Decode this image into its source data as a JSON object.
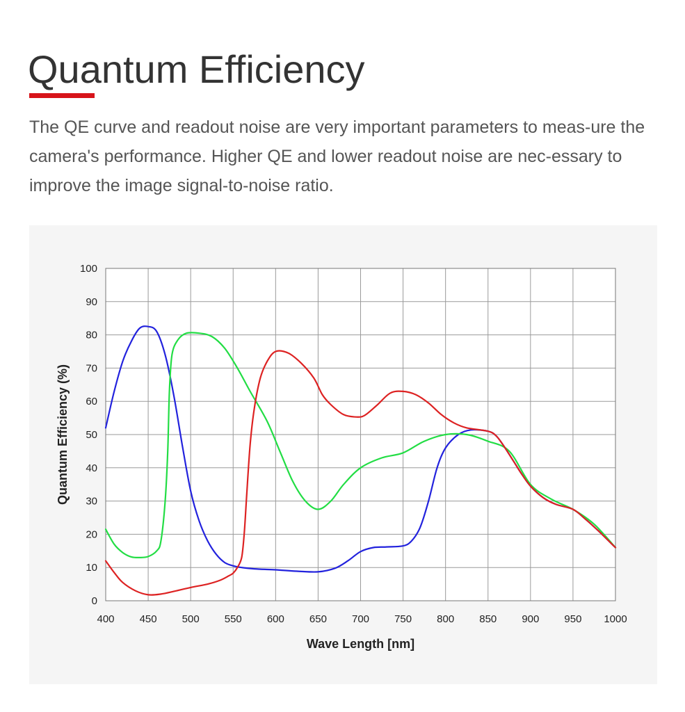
{
  "header": {
    "title": "Quantum Efficiency",
    "accent_color": "#d7141a",
    "description": "The QE curve and readout noise are very important parameters to meas-ure the camera's performance. Higher QE and lower readout noise are nec-essary to improve the image signal-to-noise ratio."
  },
  "chart_data": {
    "type": "line",
    "title": "",
    "xlabel": "Wave Length [nm]",
    "ylabel": "Quantum Efficiency (%)",
    "xlim": [
      400,
      1000
    ],
    "ylim": [
      0,
      100
    ],
    "x_ticks": [
      400,
      450,
      500,
      550,
      600,
      650,
      700,
      750,
      800,
      850,
      900,
      950,
      1000
    ],
    "y_ticks": [
      0,
      10,
      20,
      30,
      40,
      50,
      60,
      70,
      80,
      90,
      100
    ],
    "grid": true,
    "legend": "none",
    "series": [
      {
        "color": "#2222dd",
        "points": [
          [
            400,
            52
          ],
          [
            410,
            63
          ],
          [
            420,
            72
          ],
          [
            430,
            78
          ],
          [
            440,
            82
          ],
          [
            450,
            82.5
          ],
          [
            460,
            81
          ],
          [
            470,
            74
          ],
          [
            480,
            62
          ],
          [
            490,
            47
          ],
          [
            500,
            33
          ],
          [
            510,
            24
          ],
          [
            520,
            18
          ],
          [
            530,
            14
          ],
          [
            540,
            11.5
          ],
          [
            550,
            10.5
          ],
          [
            560,
            10
          ],
          [
            575,
            9.6
          ],
          [
            600,
            9.3
          ],
          [
            625,
            8.9
          ],
          [
            650,
            8.7
          ],
          [
            670,
            9.8
          ],
          [
            685,
            12
          ],
          [
            700,
            14.8
          ],
          [
            715,
            16
          ],
          [
            730,
            16.2
          ],
          [
            750,
            16.5
          ],
          [
            760,
            18
          ],
          [
            770,
            22
          ],
          [
            780,
            30
          ],
          [
            790,
            40
          ],
          [
            800,
            46
          ],
          [
            815,
            50
          ],
          [
            830,
            51.4
          ],
          [
            850,
            51
          ],
          [
            860,
            49.5
          ],
          [
            870,
            46
          ],
          [
            880,
            42
          ],
          [
            890,
            38
          ],
          [
            900,
            34.5
          ],
          [
            915,
            31
          ],
          [
            930,
            29
          ],
          [
            950,
            27.5
          ],
          [
            965,
            24.5
          ],
          [
            980,
            21
          ],
          [
            1000,
            16
          ]
        ]
      },
      {
        "color": "#22dd44",
        "points": [
          [
            400,
            21.5
          ],
          [
            410,
            17
          ],
          [
            420,
            14.5
          ],
          [
            430,
            13.2
          ],
          [
            440,
            13
          ],
          [
            450,
            13.3
          ],
          [
            460,
            15
          ],
          [
            465,
            18
          ],
          [
            470,
            30
          ],
          [
            473,
            45
          ],
          [
            475,
            63
          ],
          [
            478,
            74
          ],
          [
            485,
            78.5
          ],
          [
            495,
            80.5
          ],
          [
            510,
            80.5
          ],
          [
            525,
            79.5
          ],
          [
            540,
            76
          ],
          [
            555,
            70
          ],
          [
            570,
            63
          ],
          [
            590,
            54
          ],
          [
            605,
            45
          ],
          [
            620,
            36
          ],
          [
            635,
            30
          ],
          [
            650,
            27.5
          ],
          [
            665,
            30
          ],
          [
            680,
            35
          ],
          [
            700,
            40
          ],
          [
            725,
            43
          ],
          [
            750,
            44.5
          ],
          [
            775,
            48
          ],
          [
            800,
            50
          ],
          [
            825,
            50
          ],
          [
            850,
            48
          ],
          [
            875,
            45
          ],
          [
            900,
            35
          ],
          [
            925,
            30.5
          ],
          [
            950,
            27.5
          ],
          [
            975,
            23
          ],
          [
            1000,
            16
          ]
        ]
      },
      {
        "color": "#dd2222",
        "points": [
          [
            400,
            12
          ],
          [
            410,
            8.5
          ],
          [
            420,
            5.5
          ],
          [
            435,
            3
          ],
          [
            450,
            1.8
          ],
          [
            465,
            2
          ],
          [
            480,
            2.8
          ],
          [
            500,
            4
          ],
          [
            520,
            5
          ],
          [
            535,
            6.2
          ],
          [
            545,
            7.5
          ],
          [
            550,
            8.3
          ],
          [
            555,
            10
          ],
          [
            560,
            13
          ],
          [
            563,
            20
          ],
          [
            566,
            32
          ],
          [
            570,
            47
          ],
          [
            575,
            58
          ],
          [
            582,
            67
          ],
          [
            590,
            72
          ],
          [
            600,
            75
          ],
          [
            615,
            74.5
          ],
          [
            630,
            71.5
          ],
          [
            645,
            67
          ],
          [
            655,
            62
          ],
          [
            665,
            59
          ],
          [
            680,
            56
          ],
          [
            695,
            55.3
          ],
          [
            705,
            55.8
          ],
          [
            720,
            59
          ],
          [
            735,
            62.5
          ],
          [
            750,
            63
          ],
          [
            765,
            62
          ],
          [
            780,
            59.5
          ],
          [
            795,
            56
          ],
          [
            810,
            53.5
          ],
          [
            825,
            52
          ],
          [
            850,
            51
          ],
          [
            860,
            49.5
          ],
          [
            870,
            46
          ],
          [
            880,
            42
          ],
          [
            890,
            38
          ],
          [
            900,
            34.5
          ],
          [
            915,
            31
          ],
          [
            930,
            29
          ],
          [
            950,
            27.5
          ],
          [
            965,
            24.5
          ],
          [
            980,
            21
          ],
          [
            1000,
            16
          ]
        ]
      }
    ]
  }
}
